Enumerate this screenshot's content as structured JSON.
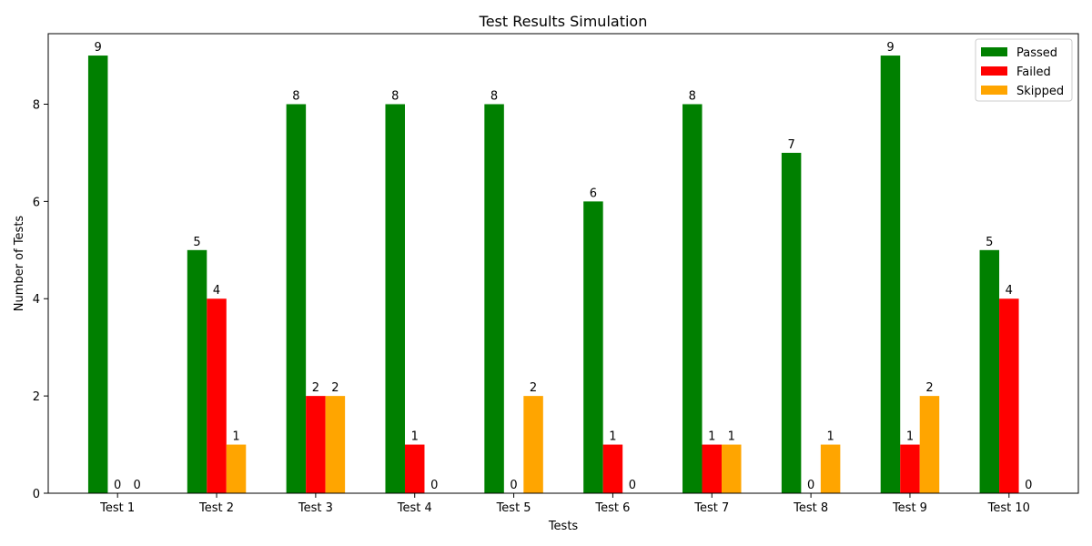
{
  "chart_data": {
    "type": "bar",
    "title": "Test Results Simulation",
    "xlabel": "Tests",
    "ylabel": "Number of Tests",
    "categories": [
      "Test 1",
      "Test 2",
      "Test 3",
      "Test 4",
      "Test 5",
      "Test 6",
      "Test 7",
      "Test 8",
      "Test 9",
      "Test 10"
    ],
    "series": [
      {
        "name": "Passed",
        "color": "#008000",
        "values": [
          9,
          5,
          8,
          8,
          8,
          6,
          8,
          7,
          9,
          5
        ]
      },
      {
        "name": "Failed",
        "color": "#ff0000",
        "values": [
          0,
          4,
          2,
          1,
          0,
          1,
          1,
          0,
          1,
          4
        ]
      },
      {
        "name": "Skipped",
        "color": "#ffa500",
        "values": [
          0,
          1,
          2,
          0,
          2,
          0,
          1,
          1,
          2,
          0
        ]
      }
    ],
    "ylim": [
      0,
      9.45
    ],
    "yticks": [
      0,
      2,
      4,
      6,
      8
    ],
    "grid": false,
    "legend": "top-right",
    "data_labels": true
  }
}
